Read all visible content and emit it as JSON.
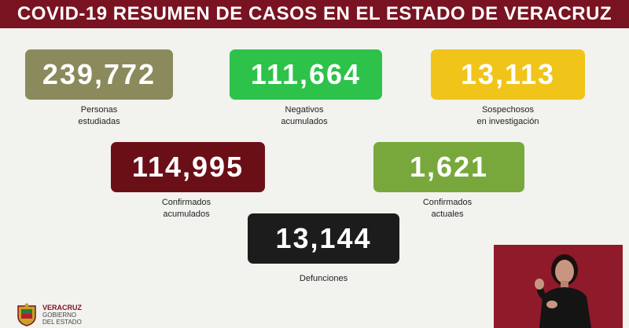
{
  "header": {
    "title": "COVID-19 RESUMEN DE CASOS EN EL ESTADO DE VERACRUZ"
  },
  "stats": {
    "personas": {
      "value": "239,772",
      "label": "Personas\nestudiadas",
      "color": "#8a8a5c"
    },
    "negativos": {
      "value": "111,664",
      "label": "Negativos\nacumulados",
      "color": "#2dc24a"
    },
    "sospechosos": {
      "value": "13,113",
      "label": "Sospechosos\nen investigación",
      "color": "#f0c419"
    },
    "confirmados": {
      "value": "114,995",
      "label": "Confirmados\nacumulados",
      "color": "#6b0f17"
    },
    "actuales": {
      "value": "1,621",
      "label": "Confirmados\nactuales",
      "color": "#78a83c"
    },
    "defunciones": {
      "value": "13,144",
      "label": "Defunciones",
      "color": "#1c1c1c"
    }
  },
  "footer": {
    "logo_main": "VERACRUZ",
    "logo_line1": "GOBIERNO",
    "logo_line2": "DEL ESTADO"
  },
  "colors": {
    "header_bg": "#7a1321",
    "page_bg": "#f2f2ee",
    "interpreter_bg": "#8f1a2a"
  },
  "icons": {
    "seal": "state-coat-of-arms-icon"
  }
}
